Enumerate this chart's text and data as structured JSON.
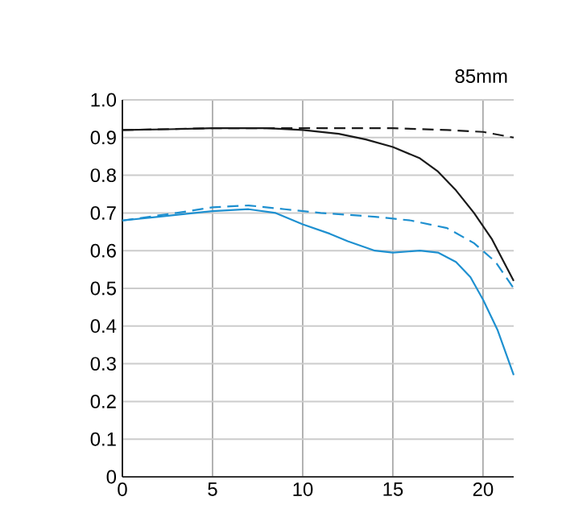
{
  "chart_data": {
    "type": "line",
    "title": "85mm",
    "xlim": [
      0,
      21.7
    ],
    "ylim": [
      0,
      1
    ],
    "xticks": [
      0,
      5,
      10,
      15,
      20
    ],
    "yticks": [
      0,
      0.1,
      0.2,
      0.3,
      0.4,
      0.5,
      0.6,
      0.7,
      0.8,
      0.9,
      {
        "value": 1,
        "label": "1.0"
      }
    ],
    "grid": true,
    "marker": "none",
    "series": [
      {
        "color": "#1a1a1a",
        "line_style": "solid",
        "x": [
          0,
          2.5,
          5,
          8,
          10,
          12,
          13.5,
          15,
          16.5,
          17.5,
          18.5,
          19.5,
          20.5,
          21.7
        ],
        "values": [
          0.92,
          0.922,
          0.925,
          0.925,
          0.92,
          0.91,
          0.895,
          0.875,
          0.845,
          0.81,
          0.76,
          0.7,
          0.63,
          0.52
        ]
      },
      {
        "color": "#1a1a1a",
        "line_style": "dashed",
        "x": [
          0,
          5,
          10,
          15,
          18,
          20,
          21.7
        ],
        "values": [
          0.92,
          0.925,
          0.925,
          0.925,
          0.92,
          0.915,
          0.9
        ]
      },
      {
        "color": "#1e90d0",
        "line_style": "solid",
        "x": [
          0,
          2,
          5,
          7,
          8.5,
          10,
          11.5,
          12.5,
          14,
          15,
          16.5,
          17.5,
          18.5,
          19.3,
          20,
          20.8,
          21.7
        ],
        "values": [
          0.68,
          0.69,
          0.705,
          0.71,
          0.7,
          0.67,
          0.645,
          0.625,
          0.6,
          0.595,
          0.6,
          0.595,
          0.57,
          0.53,
          0.47,
          0.39,
          0.27
        ]
      },
      {
        "color": "#1e90d0",
        "line_style": "dashed",
        "x": [
          0,
          3,
          5,
          7,
          9,
          11,
          14,
          16,
          18,
          19.5,
          20.7,
          21.7
        ],
        "values": [
          0.68,
          0.7,
          0.715,
          0.72,
          0.71,
          0.7,
          0.69,
          0.68,
          0.66,
          0.62,
          0.57,
          0.5
        ]
      }
    ]
  }
}
